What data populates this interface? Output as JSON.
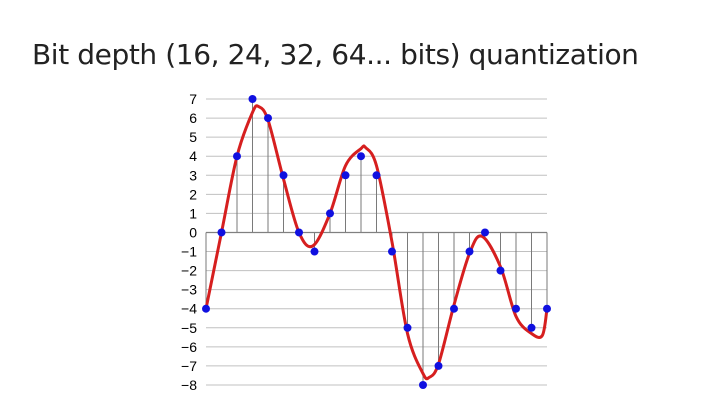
{
  "slide": {
    "title": "Bit depth (16, 24, 32, 64... bits) quantization"
  },
  "chart_data": {
    "type": "line",
    "ylim": [
      -8,
      7
    ],
    "xlim": [
      0,
      22
    ],
    "grid": true,
    "y_ticks": [
      7,
      6,
      5,
      4,
      3,
      2,
      1,
      0,
      -1,
      -2,
      -3,
      -4,
      -5,
      -6,
      -7,
      -8
    ],
    "y_tick_labels": [
      "7",
      "6",
      "5",
      "4",
      "3",
      "2",
      "1",
      "0",
      "−1",
      "−2",
      "−3",
      "−4",
      "−5",
      "−6",
      "−7",
      "−8"
    ],
    "series": [
      {
        "kind": "samples",
        "x": [
          0,
          1,
          2,
          3,
          4,
          5,
          6,
          7,
          8,
          9,
          10,
          11,
          12,
          13,
          14,
          15,
          16,
          17,
          18,
          19,
          20,
          21,
          22
        ],
        "values": [
          -4,
          0,
          4,
          7,
          6,
          3,
          0,
          -1,
          1,
          3,
          4,
          3,
          -1,
          -5,
          -8,
          -7,
          -4,
          -1,
          0,
          -2,
          -4,
          -5,
          -4
        ]
      },
      {
        "kind": "signal",
        "x": [
          0,
          1,
          2,
          3,
          3.4,
          4,
          5,
          6,
          6.9,
          8,
          9,
          10,
          10.3,
          11,
          12,
          13,
          14,
          14.4,
          15,
          16,
          17,
          17.8,
          19,
          20,
          21,
          21.7,
          22
        ],
        "values": [
          -4,
          0,
          4,
          6.3,
          6.6,
          5.9,
          2.8,
          0,
          -0.7,
          1,
          3.5,
          4.4,
          4.45,
          3.5,
          -0.5,
          -5.3,
          -7.4,
          -7.6,
          -6.9,
          -3.8,
          -1.1,
          -0.2,
          -1.8,
          -4.4,
          -5.3,
          -5.4,
          -4
        ]
      }
    ],
    "colors": {
      "signal": "#d61f1f",
      "samples": "#1010e0",
      "grid": "#c0c0c0",
      "stems": "#7a7a7a",
      "axis": "#808080"
    }
  }
}
